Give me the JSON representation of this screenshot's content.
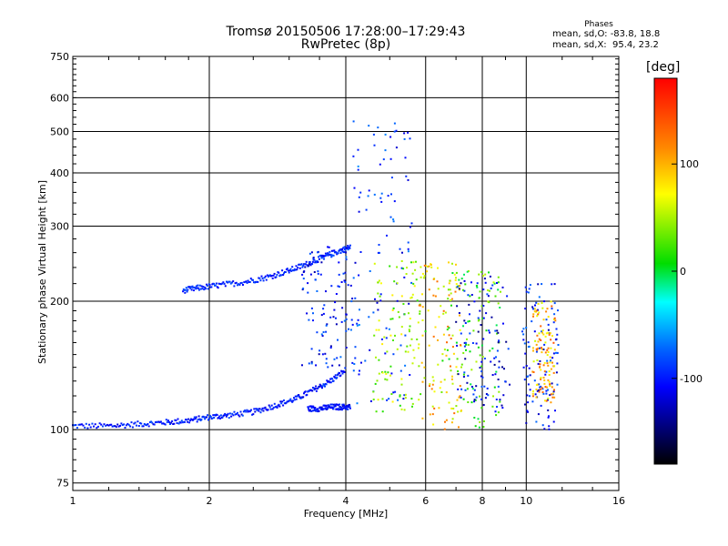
{
  "chart_data": {
    "type": "scatter",
    "title": "Tromsø 20150506 17:28:00–17:29:43",
    "subtitle": "RwPretec (8p)",
    "xlabel": "Frequency [MHz]",
    "ylabel": "Stationary phase Virtual Height [km]",
    "x_scale": "log",
    "y_scale": "log",
    "xlim": [
      1,
      16
    ],
    "ylim": [
      72,
      750
    ],
    "x_ticks": [
      1,
      2,
      4,
      6,
      8,
      10,
      16
    ],
    "y_ticks": [
      75,
      100,
      200,
      300,
      400,
      500,
      600,
      750
    ],
    "grid": true,
    "colorbar": {
      "label": "[deg]",
      "range": [
        -180,
        180
      ],
      "ticks": [
        100,
        0,
        -100
      ]
    },
    "legend": {
      "title": "Phases",
      "line1": "mean, sd,O: -83.8, 18.8",
      "line2": "mean, sd,X:  95.4, 23.2"
    },
    "traces": [
      {
        "x": [
          1.0,
          1.2,
          1.4,
          1.6,
          1.8,
          2.0,
          2.2,
          2.5,
          2.8,
          3.1,
          3.4,
          3.7,
          4.0
        ],
        "y": [
          102,
          102,
          103,
          104,
          105,
          107,
          108,
          110,
          114,
          118,
          124,
          130,
          138
        ],
        "phase": -100
      },
      {
        "x": [
          1.75,
          1.9,
          2.1,
          2.4,
          2.7,
          3.0,
          3.3,
          3.6,
          3.9,
          4.1
        ],
        "y": [
          212,
          215,
          218,
          222,
          228,
          236,
          245,
          255,
          263,
          268
        ],
        "phase": -95
      },
      {
        "x": [
          3.3,
          3.5,
          3.7,
          3.9,
          4.1
        ],
        "y": [
          112,
          112,
          113,
          113,
          113
        ],
        "phase": -105
      }
    ],
    "clusters": [
      {
        "x": [
          3.2,
          4.2
        ],
        "y": [
          140,
          270
        ],
        "phase": -100
      },
      {
        "x": [
          4.1,
          5.6
        ],
        "y": [
          115,
          540
        ],
        "phase": -90
      },
      {
        "x": [
          4.6,
          6.0
        ],
        "y": [
          110,
          250
        ],
        "phase": 60
      },
      {
        "x": [
          5.8,
          7.2
        ],
        "y": [
          100,
          250
        ],
        "phase": 100
      },
      {
        "x": [
          6.5,
          8.8
        ],
        "y": [
          100,
          240
        ],
        "phase": 40
      },
      {
        "x": [
          7.0,
          9.2
        ],
        "y": [
          110,
          230
        ],
        "phase": -110
      },
      {
        "x": [
          9.8,
          11.8
        ],
        "y": [
          100,
          220
        ],
        "phase": -100
      },
      {
        "x": [
          10.3,
          11.6
        ],
        "y": [
          115,
          200
        ],
        "phase": 110
      }
    ]
  }
}
